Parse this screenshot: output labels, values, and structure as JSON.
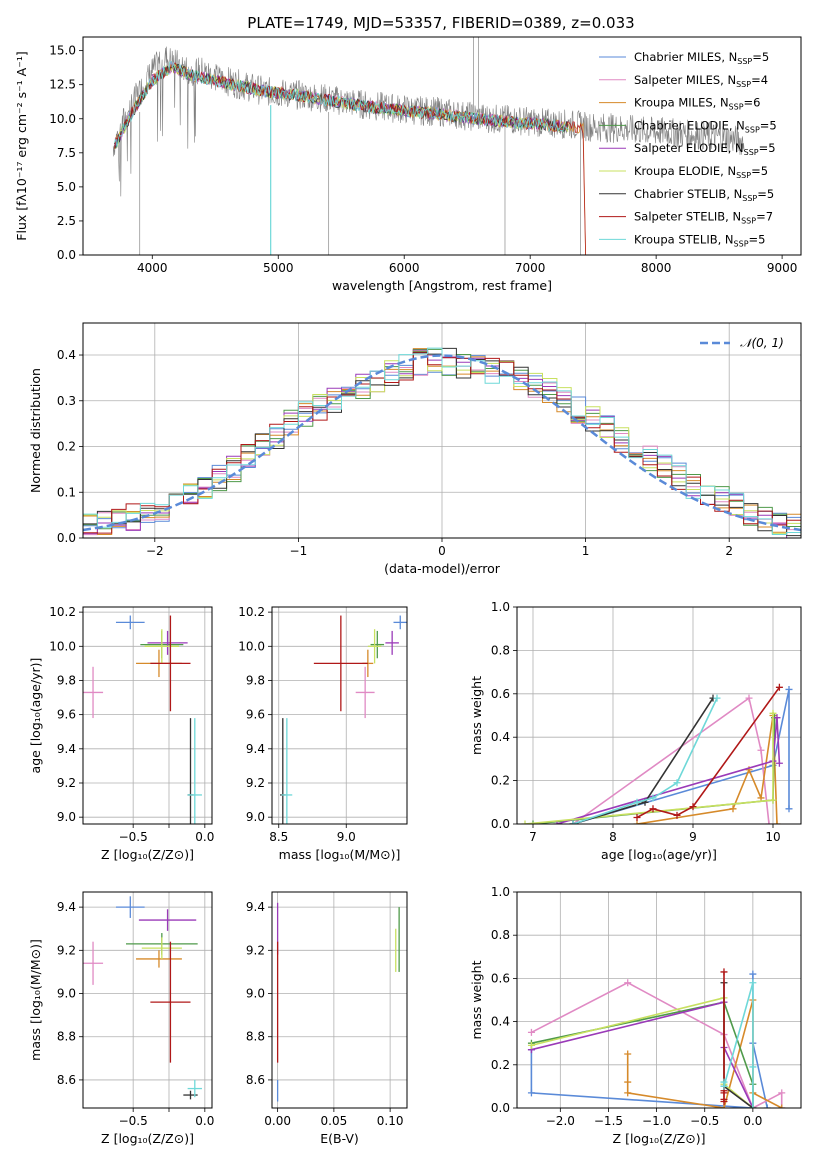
{
  "figure_title": "PLATE=1749, MJD=53357, FIBERID=0389, z=0.033",
  "chart_data": [
    {
      "id": "spectrum",
      "type": "line",
      "title": "PLATE=1749, MJD=53357, FIBERID=0389, z=0.033",
      "xlabel": "wavelength [Angstrom, rest frame]",
      "ylabel": "Flux [fλ10⁻¹⁷ erg cm⁻² s⁻¹ A⁻¹]",
      "xlim": [
        3450,
        9150
      ],
      "ylim": [
        0,
        16
      ],
      "xticks": [
        4000,
        5000,
        6000,
        7000,
        8000,
        9000
      ],
      "yticks": [
        0.0,
        2.5,
        5.0,
        7.5,
        10.0,
        12.5,
        15.0
      ],
      "grid": false,
      "legend_position": "upper-right",
      "observed_spectrum": {
        "color": "#808080",
        "x": [
          3690,
          3800,
          3900,
          4000,
          4100,
          4200,
          4300,
          4400,
          4500,
          4700,
          4900,
          5100,
          5300,
          5500,
          5700,
          5900,
          6100,
          6300,
          6500,
          6700,
          6900,
          7100,
          7300,
          7500,
          7700,
          7900,
          8100,
          8300,
          8500,
          8700
        ],
        "y": [
          8.0,
          10.5,
          12.0,
          13.5,
          14.5,
          14.0,
          13.5,
          13.5,
          13.0,
          12.5,
          12.0,
          11.8,
          11.6,
          11.3,
          11.0,
          10.8,
          10.6,
          10.5,
          10.2,
          10.0,
          9.9,
          9.7,
          9.6,
          9.4,
          9.3,
          9.1,
          9.0,
          8.8,
          8.7,
          8.3
        ]
      },
      "series": [
        {
          "name": "Chabrier MILES, N_SSP=5",
          "color": "#5a8ad8"
        },
        {
          "name": "Salpeter MILES, N_SSP=4",
          "color": "#e08ac4"
        },
        {
          "name": "Kroupa MILES, N_SSP=6",
          "color": "#d68a2a"
        },
        {
          "name": "Chabrier ELODIE, N_SSP=5",
          "color": "#4f9a4a"
        },
        {
          "name": "Salpeter ELODIE, N_SSP=5",
          "color": "#9a3ab8"
        },
        {
          "name": "Kroupa ELODIE, N_SSP=5",
          "color": "#c8e060"
        },
        {
          "name": "Chabrier STELIB, N_SSP=5",
          "color": "#333333"
        },
        {
          "name": "Salpeter STELIB, N_SSP=7",
          "color": "#b01818"
        },
        {
          "name": "Kroupa STELIB, N_SSP=5",
          "color": "#6ed8d8"
        }
      ],
      "model_curve": {
        "x": [
          3700,
          3850,
          4000,
          4150,
          4300,
          4500,
          4700,
          4900,
          5100,
          5300,
          5500,
          5700,
          5900,
          6100,
          6300,
          6500,
          6700,
          6900,
          7100,
          7300,
          7420
        ],
        "y": [
          8.0,
          10.6,
          12.8,
          13.8,
          13.2,
          12.8,
          12.4,
          12.0,
          11.8,
          11.5,
          11.2,
          10.9,
          10.7,
          10.5,
          10.3,
          10.1,
          9.9,
          9.7,
          9.6,
          9.4,
          9.3
        ]
      },
      "legend_labels": [
        "Chabrier MILES, N",
        "Salpeter MILES, N",
        "Kroupa MILES, N",
        "Chabrier ELODIE, N",
        "Salpeter ELODIE, N",
        "Kroupa ELODIE, N",
        "Chabrier STELIB, N",
        "Salpeter STELIB, N",
        "Kroupa STELIB, N"
      ],
      "legend_nssp": [
        "5",
        "4",
        "6",
        "5",
        "5",
        "5",
        "5",
        "7",
        "5"
      ]
    },
    {
      "id": "residuals",
      "type": "line",
      "xlabel": "(data-model)/error",
      "ylabel": "Normed distribution",
      "xlim": [
        -2.5,
        2.5
      ],
      "ylim": [
        0,
        0.47
      ],
      "xticks": [
        -2,
        -1,
        0,
        1,
        2
      ],
      "yticks": [
        0.0,
        0.1,
        0.2,
        0.3,
        0.4
      ],
      "grid": true,
      "legend_position": "upper-right",
      "legend_label": "𝒩(0, 1)",
      "bin_edges_start": -2.5,
      "bin_width": 0.1,
      "histogram_base": [
        0.03,
        0.035,
        0.04,
        0.045,
        0.055,
        0.065,
        0.08,
        0.095,
        0.11,
        0.13,
        0.15,
        0.175,
        0.2,
        0.225,
        0.25,
        0.27,
        0.285,
        0.3,
        0.315,
        0.33,
        0.345,
        0.36,
        0.375,
        0.385,
        0.39,
        0.385,
        0.375,
        0.37,
        0.365,
        0.36,
        0.35,
        0.335,
        0.32,
        0.3,
        0.28,
        0.26,
        0.24,
        0.215,
        0.195,
        0.175,
        0.155,
        0.135,
        0.115,
        0.1,
        0.085,
        0.07,
        0.055,
        0.045,
        0.035,
        0.025
      ],
      "gaussian_color": "#5a8ad8"
    },
    {
      "id": "age-vs-Z",
      "type": "scatter",
      "xlabel": "Z [log₁₀(Z/Z⊙)]",
      "ylabel": "age  [log₁₀(age/yr)]",
      "xlim": [
        -0.85,
        0.05
      ],
      "ylim": [
        8.96,
        10.23
      ],
      "xticks": [
        -0.5,
        -0.25,
        0.0
      ],
      "xtick_labels": [
        "−0.5",
        "",
        "0.0"
      ],
      "yticks": [
        9.0,
        9.2,
        9.4,
        9.6,
        9.8,
        10.0,
        10.2
      ],
      "grid": true,
      "points": [
        {
          "series": "Chabrier MILES",
          "color": "#5a8ad8",
          "x": -0.52,
          "y": 10.14,
          "xerr": 0.1,
          "yerr": 0.04
        },
        {
          "series": "Salpeter MILES",
          "color": "#e08ac4",
          "x": -0.78,
          "y": 9.73,
          "xerr": 0.07,
          "yerr": 0.15
        },
        {
          "series": "Kroupa MILES",
          "color": "#d68a2a",
          "x": -0.32,
          "y": 9.9,
          "xerr": 0.16,
          "yerr": 0.08
        },
        {
          "series": "Chabrier ELODIE",
          "color": "#4f9a4a",
          "x": -0.3,
          "y": 10.01,
          "xerr": 0.15,
          "yerr": 0.08
        },
        {
          "series": "Salpeter ELODIE",
          "color": "#9a3ab8",
          "x": -0.26,
          "y": 10.02,
          "xerr": 0.14,
          "yerr": 0.07
        },
        {
          "series": "Kroupa ELODIE",
          "color": "#c8e060",
          "x": -0.3,
          "y": 10.0,
          "xerr": 0.12,
          "yerr": 0.1
        },
        {
          "series": "Chabrier STELIB",
          "color": "#333333",
          "x": -0.1,
          "y": 9.13,
          "xerr": 0.02,
          "yerr": 0.45
        },
        {
          "series": "Salpeter STELIB",
          "color": "#b01818",
          "x": -0.24,
          "y": 9.9,
          "xerr": 0.14,
          "yerr": 0.28
        },
        {
          "series": "Kroupa STELIB",
          "color": "#6ed8d8",
          "x": -0.07,
          "y": 9.13,
          "xerr": 0.05,
          "yerr": 0.45
        }
      ]
    },
    {
      "id": "age-vs-mass",
      "type": "scatter",
      "xlabel": "mass [log₁₀(M/M⊙)]",
      "ylabel": "",
      "xlim": [
        8.45,
        9.45
      ],
      "ylim": [
        8.96,
        10.23
      ],
      "xticks": [
        8.5,
        9.0
      ],
      "xtick_labels": [
        "8.5",
        "9.0"
      ],
      "yticks": [
        9.0,
        9.2,
        9.4,
        9.6,
        9.8,
        10.0,
        10.2
      ],
      "grid": true,
      "points": [
        {
          "series": "Chabrier MILES",
          "color": "#5a8ad8",
          "x": 9.4,
          "y": 10.14,
          "xerr": 0.05,
          "yerr": 0.04
        },
        {
          "series": "Salpeter MILES",
          "color": "#e08ac4",
          "x": 9.14,
          "y": 9.73,
          "xerr": 0.07,
          "yerr": 0.15
        },
        {
          "series": "Kroupa MILES",
          "color": "#d68a2a",
          "x": 9.16,
          "y": 9.9,
          "xerr": 0.04,
          "yerr": 0.08
        },
        {
          "series": "Chabrier ELODIE",
          "color": "#4f9a4a",
          "x": 9.23,
          "y": 10.01,
          "xerr": 0.05,
          "yerr": 0.08
        },
        {
          "series": "Salpeter ELODIE",
          "color": "#9a3ab8",
          "x": 9.34,
          "y": 10.02,
          "xerr": 0.05,
          "yerr": 0.07
        },
        {
          "series": "Kroupa ELODIE",
          "color": "#c8e060",
          "x": 9.21,
          "y": 10.0,
          "xerr": 0.05,
          "yerr": 0.1
        },
        {
          "series": "Chabrier STELIB",
          "color": "#333333",
          "x": 8.53,
          "y": 9.13,
          "xerr": 0.02,
          "yerr": 0.45
        },
        {
          "series": "Salpeter STELIB",
          "color": "#b01818",
          "x": 8.96,
          "y": 9.9,
          "xerr": 0.2,
          "yerr": 0.28
        },
        {
          "series": "Kroupa STELIB",
          "color": "#6ed8d8",
          "x": 8.56,
          "y": 9.13,
          "xerr": 0.04,
          "yerr": 0.45
        }
      ]
    },
    {
      "id": "mw-vs-age",
      "type": "line",
      "xlabel": "age  [log₁₀(age/yr)]",
      "ylabel": "mass weight",
      "xlim": [
        6.8,
        10.35
      ],
      "ylim": [
        0,
        1.0
      ],
      "xticks": [
        7,
        8,
        9,
        10
      ],
      "yticks": [
        0.0,
        0.2,
        0.4,
        0.6,
        0.8,
        1.0
      ],
      "grid": true,
      "series": [
        {
          "name": "Chabrier MILES",
          "color": "#5a8ad8",
          "x": [
            7.5,
            10.0,
            10.2,
            10.2
          ],
          "y": [
            0.0,
            0.27,
            0.62,
            0.07
          ]
        },
        {
          "name": "Salpeter MILES",
          "color": "#e08ac4",
          "x": [
            7.5,
            9.7,
            9.85,
            9.95
          ],
          "y": [
            0.0,
            0.58,
            0.34,
            0.0
          ]
        },
        {
          "name": "Kroupa MILES",
          "color": "#d68a2a",
          "x": [
            8.3,
            9.5,
            9.7,
            9.85,
            10.0,
            10.05
          ],
          "y": [
            0.0,
            0.07,
            0.25,
            0.12,
            0.5,
            0.0
          ]
        },
        {
          "name": "Chabrier ELODIE",
          "color": "#4f9a4a",
          "x": [
            7.0,
            10.0,
            10.02
          ],
          "y": [
            0.0,
            0.11,
            0.49
          ]
        },
        {
          "name": "Salpeter ELODIE",
          "color": "#9a3ab8",
          "x": [
            7.3,
            10.0,
            10.05,
            10.08
          ],
          "y": [
            0.0,
            0.29,
            0.49,
            0.28
          ]
        },
        {
          "name": "Kroupa ELODIE",
          "color": "#c8e060",
          "x": [
            6.9,
            10.0,
            10.0
          ],
          "y": [
            0.0,
            0.11,
            0.51
          ]
        },
        {
          "name": "Chabrier STELIB",
          "color": "#333333",
          "x": [
            7.5,
            8.4,
            9.25
          ],
          "y": [
            0.0,
            0.1,
            0.58
          ]
        },
        {
          "name": "Salpeter STELIB",
          "color": "#b01818",
          "x": [
            8.3,
            8.5,
            8.8,
            9.0,
            10.08
          ],
          "y": [
            0.03,
            0.07,
            0.04,
            0.08,
            0.63
          ]
        },
        {
          "name": "Kroupa STELIB",
          "color": "#6ed8d8",
          "x": [
            7.5,
            8.3,
            8.5,
            8.8,
            9.3
          ],
          "y": [
            0.0,
            0.1,
            0.12,
            0.19,
            0.58
          ]
        }
      ]
    },
    {
      "id": "mass-vs-Z",
      "type": "scatter",
      "xlabel": "Z [log₁₀(Z/Z⊙)]",
      "ylabel": "mass [log₁₀(M/M⊙)]",
      "xlim": [
        -0.85,
        0.05
      ],
      "ylim": [
        8.47,
        9.47
      ],
      "xticks": [
        -0.5,
        -0.25,
        0.0
      ],
      "xtick_labels": [
        "−0.5",
        "",
        "0.0"
      ],
      "yticks": [
        8.6,
        8.8,
        9.0,
        9.2,
        9.4
      ],
      "grid": true,
      "points": [
        {
          "series": "Chabrier MILES",
          "color": "#5a8ad8",
          "x": -0.52,
          "y": 9.4,
          "xerr": 0.1,
          "yerr": 0.05
        },
        {
          "series": "Salpeter MILES",
          "color": "#e08ac4",
          "x": -0.78,
          "y": 9.14,
          "xerr": 0.07,
          "yerr": 0.1
        },
        {
          "series": "Kroupa MILES",
          "color": "#d68a2a",
          "x": -0.32,
          "y": 9.16,
          "xerr": 0.16,
          "yerr": 0.04
        },
        {
          "series": "Chabrier ELODIE",
          "color": "#4f9a4a",
          "x": -0.3,
          "y": 9.23,
          "xerr": 0.25,
          "yerr": 0.05
        },
        {
          "series": "Salpeter ELODIE",
          "color": "#9a3ab8",
          "x": -0.26,
          "y": 9.34,
          "xerr": 0.2,
          "yerr": 0.05
        },
        {
          "series": "Kroupa ELODIE",
          "color": "#c8e060",
          "x": -0.3,
          "y": 9.21,
          "xerr": 0.14,
          "yerr": 0.05
        },
        {
          "series": "Chabrier STELIB",
          "color": "#333333",
          "x": -0.1,
          "y": 8.53,
          "xerr": 0.05,
          "yerr": 0.02
        },
        {
          "series": "Salpeter STELIB",
          "color": "#b01818",
          "x": -0.24,
          "y": 8.96,
          "xerr": 0.14,
          "yerr": 0.28
        },
        {
          "series": "Kroupa STELIB",
          "color": "#6ed8d8",
          "x": -0.07,
          "y": 8.56,
          "xerr": 0.05,
          "yerr": 0.04
        }
      ]
    },
    {
      "id": "mass-vs-ebv",
      "type": "scatter",
      "xlabel": "E(B-V)",
      "ylabel": "",
      "xlim": [
        -0.005,
        0.115
      ],
      "ylim": [
        8.47,
        9.47
      ],
      "xticks": [
        0.0,
        0.05,
        0.1
      ],
      "xtick_labels": [
        "0.00",
        "0.05",
        "0.10"
      ],
      "yticks": [
        8.6,
        8.8,
        9.0,
        9.2,
        9.4
      ],
      "grid": true,
      "points": [
        {
          "series": "Chabrier MILES",
          "color": "#5a8ad8",
          "x": 0.0,
          "y": 8.55,
          "xerr": 0.0,
          "yerr": 0.05
        },
        {
          "series": "Salpeter ELODIE",
          "color": "#9a3ab8",
          "x": 0.0,
          "y": 9.3,
          "xerr": 0.0,
          "yerr": 0.12
        },
        {
          "series": "Salpeter STELIB",
          "color": "#b01818",
          "x": 0.0,
          "y": 8.96,
          "xerr": 0.0,
          "yerr": 0.28
        },
        {
          "series": "Chabrier ELODIE",
          "color": "#4f9a4a",
          "x": 0.108,
          "y": 9.25,
          "xerr": 0.0,
          "yerr": 0.15
        },
        {
          "series": "Kroupa ELODIE",
          "color": "#c8e060",
          "x": 0.105,
          "y": 9.2,
          "xerr": 0.0,
          "yerr": 0.1
        }
      ]
    },
    {
      "id": "mw-vs-Z",
      "type": "line",
      "xlabel": "Z [log₁₀(Z/Z⊙)]",
      "ylabel": "mass weight",
      "xlim": [
        -2.45,
        0.5
      ],
      "ylim": [
        0,
        1.0
      ],
      "xticks": [
        -2.0,
        -1.5,
        -1.0,
        -0.5,
        0.0
      ],
      "xtick_labels": [
        "−2.0",
        "−1.5",
        "−1.0",
        "−0.5",
        "0.0"
      ],
      "yticks": [
        0.0,
        0.2,
        0.4,
        0.6,
        0.8,
        1.0
      ],
      "grid": true,
      "series": [
        {
          "name": "Chabrier MILES",
          "color": "#5a8ad8",
          "x": [
            -2.3,
            -2.3,
            0.0,
            0.0,
            0.0,
            0.15
          ],
          "y": [
            0.27,
            0.07,
            0.0,
            0.62,
            0.3,
            0.0
          ]
        },
        {
          "name": "Salpeter MILES",
          "color": "#e08ac4",
          "x": [
            -2.3,
            -1.3,
            -0.3,
            0.0,
            0.3,
            0.3
          ],
          "y": [
            0.35,
            0.58,
            0.34,
            0.0,
            0.07,
            0.0
          ]
        },
        {
          "name": "Kroupa MILES",
          "color": "#d68a2a",
          "x": [
            -1.3,
            -1.3,
            -1.3,
            -0.3,
            0.0,
            0.0,
            0.3
          ],
          "y": [
            0.25,
            0.12,
            0.07,
            0.0,
            0.5,
            0.07,
            0.0
          ]
        },
        {
          "name": "Chabrier ELODIE",
          "color": "#4f9a4a",
          "x": [
            -2.3,
            -0.3,
            0.0,
            0.0
          ],
          "y": [
            0.3,
            0.49,
            0.11,
            0.0
          ]
        },
        {
          "name": "Salpeter ELODIE",
          "color": "#9a3ab8",
          "x": [
            -2.3,
            -0.3,
            -0.3,
            0.0
          ],
          "y": [
            0.27,
            0.49,
            0.28,
            0.0
          ]
        },
        {
          "name": "Kroupa ELODIE",
          "color": "#c8e060",
          "x": [
            -2.3,
            -0.3,
            -0.3,
            0.0
          ],
          "y": [
            0.29,
            0.51,
            0.11,
            0.0
          ]
        },
        {
          "name": "Chabrier STELIB",
          "color": "#333333",
          "x": [
            -0.3,
            -0.3,
            0.0
          ],
          "y": [
            0.58,
            0.1,
            0.0
          ]
        },
        {
          "name": "Salpeter STELIB",
          "color": "#b01818",
          "x": [
            -0.3,
            -0.3,
            -0.3,
            -0.3,
            -0.3
          ],
          "y": [
            0.63,
            0.08,
            0.07,
            0.04,
            0.03
          ]
        },
        {
          "name": "Kroupa STELIB",
          "color": "#6ed8d8",
          "x": [
            -0.3,
            -0.3,
            0.0,
            0.0,
            0.0
          ],
          "y": [
            0.12,
            0.1,
            0.58,
            0.19,
            0.0
          ]
        }
      ]
    }
  ]
}
